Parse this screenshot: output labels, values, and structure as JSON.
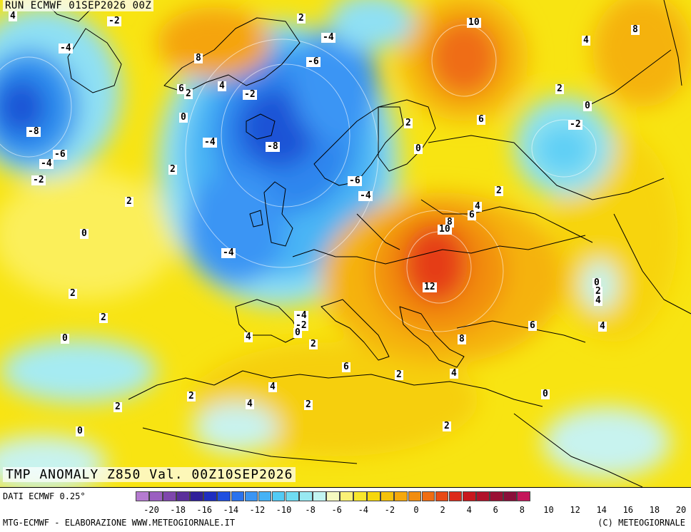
{
  "header": {
    "run_title": "RUN ECMWF 01SEP2026 00Z",
    "field_title": "TMP ANOMALY Z850 Val. 00Z10SEP2026"
  },
  "footer": {
    "data_source": "DATI ECMWF 0.25°",
    "credit": "MTG-ECMWF - ELABORAZIONE WWW.METEOGIORNALE.IT",
    "copyright": "(C) METEOGIORNALE"
  },
  "legend": {
    "colors": [
      "#b57bd0",
      "#9a5fc0",
      "#7f47ad",
      "#5a2f9b",
      "#2f1f9a",
      "#1e2ec0",
      "#1f4fe0",
      "#2a72ee",
      "#3a95f4",
      "#45b2f6",
      "#52cbf5",
      "#6fdcf3",
      "#98e9f2",
      "#c2f4f2",
      "#f5f9c0",
      "#fbf176",
      "#f7e62c",
      "#f6d70c",
      "#f5c20a",
      "#f5a80c",
      "#f28d0f",
      "#ef6d12",
      "#e84a16",
      "#dc2b1b",
      "#c8181e",
      "#b0122a",
      "#9a1034",
      "#8a0f3a",
      "#c4165a"
    ],
    "ticks": [
      "-20",
      "-18",
      "-16",
      "-14",
      "-12",
      "-10",
      "-8",
      "-6",
      "-4",
      "-2",
      "0",
      "2",
      "4",
      "6",
      "8",
      "10",
      "12",
      "14",
      "16",
      "18",
      "20"
    ]
  },
  "map_labels": [
    "4",
    "-2",
    "2",
    "-4",
    "10",
    "8",
    "-4",
    "8",
    "-6",
    "4",
    "6",
    "4",
    "2",
    "-2",
    "0",
    "2",
    "0",
    "-2",
    "-8",
    "-6",
    "-4",
    "-2",
    "6",
    "-4",
    "-8",
    "2",
    "0",
    "2",
    "-6",
    "-4",
    "2",
    "4",
    "2",
    "0",
    "6",
    "8",
    "10",
    "-4",
    "-4",
    "-2",
    "0",
    "12",
    "2",
    "0",
    "2",
    "2",
    "4",
    "4",
    "2",
    "8",
    "6",
    "6",
    "4",
    "4",
    "2",
    "0",
    "4",
    "0",
    "2",
    "2",
    "4",
    "2",
    "0",
    "2"
  ]
}
